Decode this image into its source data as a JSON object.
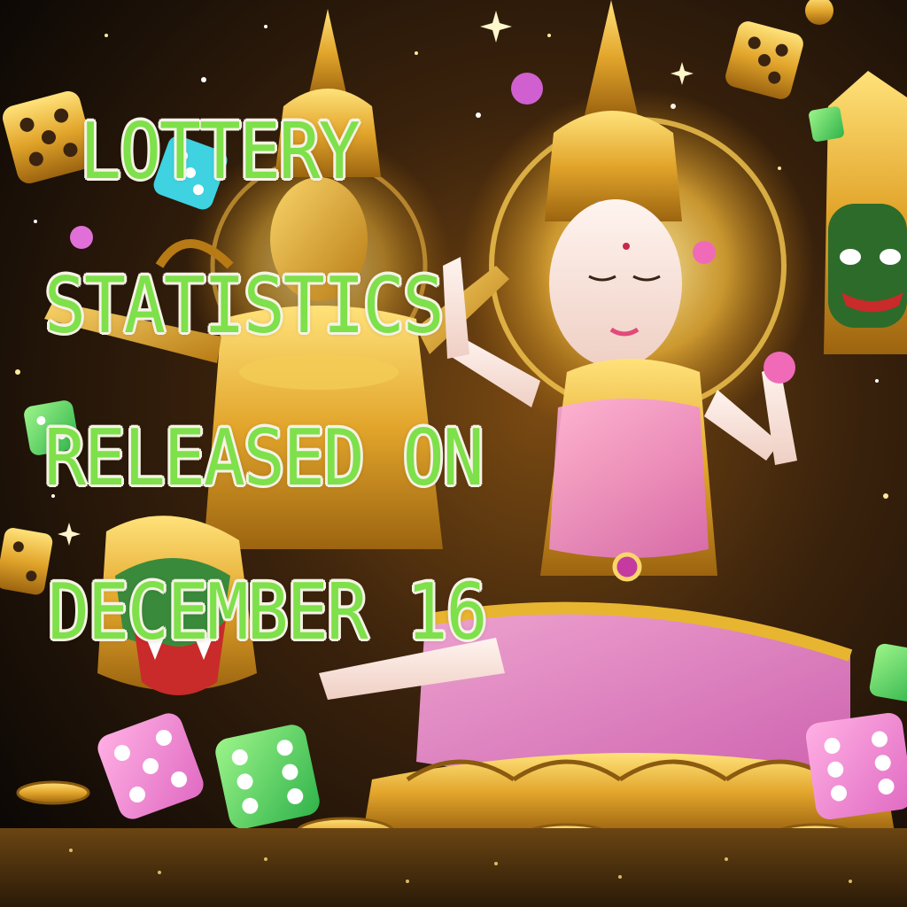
{
  "headline": {
    "lines": [
      "LOTTERY",
      "STATISTICS",
      "RELEASED ON",
      "DECEMBER 16"
    ],
    "color": "#7ee04a",
    "outline": "#f6f2e6"
  },
  "palette": {
    "gold": "#e8b530",
    "deep_gold": "#b87a14",
    "skin": "#f7e2dc",
    "pink": "#f08ad2",
    "green": "#4fd65a",
    "background": "#0d0906"
  }
}
